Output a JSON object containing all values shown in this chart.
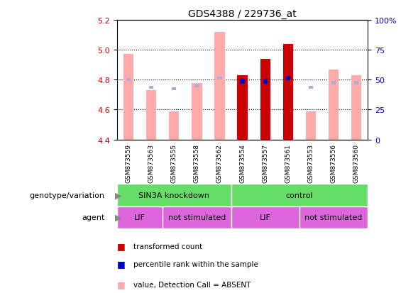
{
  "title": "GDS4388 / 229736_at",
  "samples": [
    "GSM873559",
    "GSM873563",
    "GSM873555",
    "GSM873558",
    "GSM873562",
    "GSM873554",
    "GSM873557",
    "GSM873561",
    "GSM873553",
    "GSM873556",
    "GSM873560"
  ],
  "ylim_left": [
    4.4,
    5.2
  ],
  "ylim_right": [
    0,
    100
  ],
  "yticks_left": [
    4.4,
    4.6,
    4.8,
    5.0,
    5.2
  ],
  "yticks_right": [
    0,
    25,
    50,
    75,
    100
  ],
  "ytick_labels_right": [
    "0",
    "25",
    "50",
    "75",
    "100%"
  ],
  "value_bars": [
    null,
    null,
    null,
    null,
    null,
    4.83,
    4.94,
    5.04,
    null,
    null,
    null
  ],
  "value_bar_bottom": 4.4,
  "rank_bars": [
    null,
    null,
    null,
    null,
    null,
    4.775,
    4.775,
    4.795,
    null,
    null,
    null
  ],
  "rank_bar_height": 0.03,
  "absent_value_bars": [
    4.97,
    4.73,
    4.59,
    4.78,
    5.12,
    null,
    null,
    null,
    4.59,
    4.87,
    4.83
  ],
  "absent_rank_bars": [
    4.79,
    4.74,
    4.73,
    4.75,
    4.8,
    null,
    null,
    null,
    4.74,
    4.77,
    4.77
  ],
  "absent_rank_bar_height": 0.02,
  "color_value_present": "#cc0000",
  "color_rank_present": "#0000bb",
  "color_value_absent": "#ffaaaa",
  "color_rank_absent": "#aaaadd",
  "color_genotype": "#66dd66",
  "color_agent": "#dd66dd",
  "bar_width": 0.45,
  "rank_bar_width": 0.2,
  "bg_color": "#ffffff",
  "label_color_left": "#cc0000",
  "label_color_right": "#0000bb",
  "title_fontsize": 10,
  "tick_fontsize": 8,
  "sample_fontsize": 6.5,
  "annot_fontsize": 8,
  "legend_fontsize": 7.5
}
